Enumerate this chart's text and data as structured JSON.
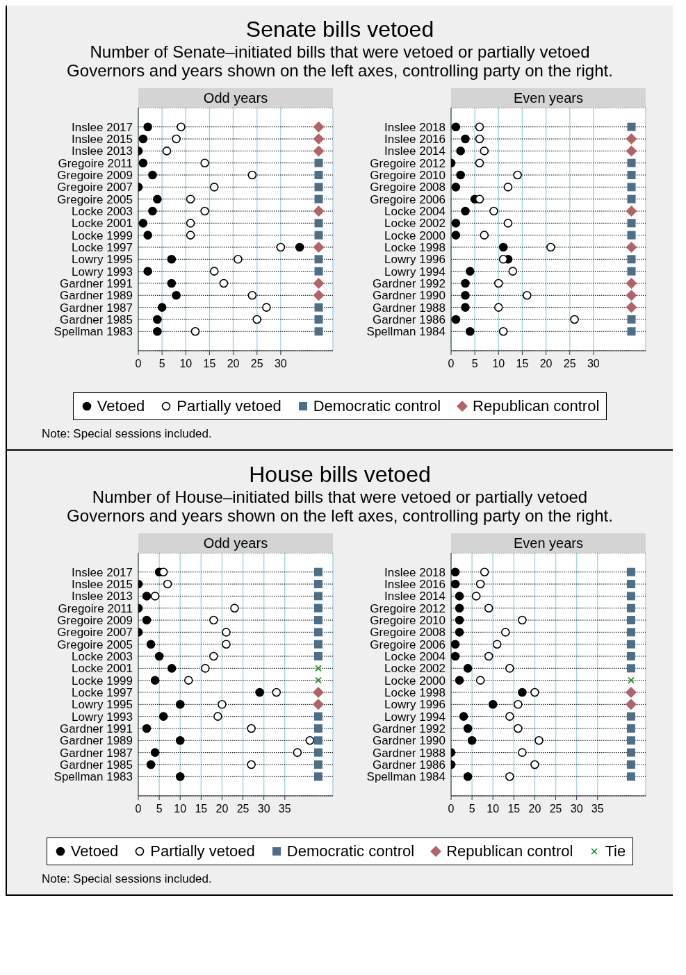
{
  "chart_data": [
    {
      "type": "scatter",
      "orientation": "horizontal",
      "title": "Odd years",
      "annotations": [
        "Senate bills vetoed",
        "Number of Senate–initiated bills that were vetoed or partially vetoed",
        "Governors and years shown on the left axes, controlling party on the right.",
        "Note: Special sessions included."
      ],
      "legend": "bottom",
      "grid": true,
      "categories": [
        "Inslee 2017",
        "Inslee 2015",
        "Inslee 2013",
        "Gregoire 2011",
        "Gregoire 2009",
        "Gregoire 2007",
        "Gregoire 2005",
        "Locke 2003",
        "Locke 2001",
        "Locke 1999",
        "Locke 1997",
        "Lowry 1995",
        "Lowry 1993",
        "Gardner 1991",
        "Gardner 1989",
        "Gardner 1987",
        "Gardner 1985",
        "Spellman 1983"
      ],
      "xlim": [
        0,
        41
      ],
      "xticks": [
        0,
        5,
        10,
        15,
        20,
        25,
        30
      ],
      "series": [
        {
          "name": "Vetoed",
          "color": "#000000",
          "marker": "circle",
          "values": [
            2,
            1,
            0,
            1,
            3,
            0,
            4,
            3,
            1,
            2,
            34,
            7,
            2,
            7,
            8,
            5,
            4,
            4
          ]
        },
        {
          "name": "Partially vetoed",
          "color": "#ffffff",
          "marker": "circle",
          "values": [
            9,
            8,
            6,
            14,
            24,
            16,
            11,
            14,
            11,
            11,
            30,
            21,
            16,
            18,
            24,
            27,
            25,
            12
          ]
        },
        {
          "name": "Democratic control",
          "color": "#4e6e88",
          "marker": "square",
          "values": [
            null,
            null,
            null,
            38,
            38,
            38,
            38,
            null,
            38,
            38,
            null,
            38,
            38,
            null,
            null,
            38,
            38,
            38
          ]
        },
        {
          "name": "Republican control",
          "color": "#b0646a",
          "marker": "diamond",
          "values": [
            38,
            38,
            38,
            null,
            null,
            null,
            null,
            38,
            null,
            null,
            38,
            null,
            null,
            38,
            38,
            null,
            null,
            null
          ]
        }
      ]
    },
    {
      "type": "scatter",
      "orientation": "horizontal",
      "title": "Even years",
      "grid": true,
      "categories": [
        "Inslee 2018",
        "Inslee 2016",
        "Inslee 2014",
        "Gregoire 2012",
        "Gregoire 2010",
        "Gregoire 2008",
        "Gregoire 2006",
        "Locke 2004",
        "Locke 2002",
        "Locke 2000",
        "Locke 1998",
        "Lowry 1996",
        "Lowry 1994",
        "Gardner 1992",
        "Gardner 1990",
        "Gardner 1988",
        "Gardner 1986",
        "Spellman 1984"
      ],
      "xlim": [
        0,
        41
      ],
      "xticks": [
        0,
        5,
        10,
        15,
        20,
        25,
        30
      ],
      "series": [
        {
          "color": "#000000",
          "marker": "circle",
          "values": [
            1,
            3,
            2,
            0,
            2,
            1,
            5,
            3,
            1,
            1,
            11,
            12,
            4,
            3,
            3,
            3,
            1,
            4
          ]
        },
        {
          "color": "#ffffff",
          "marker": "circle",
          "values": [
            6,
            6,
            7,
            6,
            14,
            12,
            6,
            9,
            12,
            7,
            21,
            11,
            13,
            10,
            16,
            10,
            26,
            11
          ]
        },
        {
          "color": "#4e6e88",
          "marker": "square",
          "values": [
            38,
            null,
            null,
            38,
            38,
            38,
            38,
            null,
            38,
            38,
            null,
            38,
            38,
            null,
            null,
            null,
            38,
            38
          ]
        },
        {
          "color": "#b0646a",
          "marker": "diamond",
          "values": [
            null,
            38,
            38,
            null,
            null,
            null,
            null,
            38,
            null,
            null,
            38,
            null,
            null,
            38,
            38,
            38,
            null,
            null
          ]
        }
      ]
    },
    {
      "type": "scatter",
      "orientation": "horizontal",
      "title": "Odd years",
      "annotations": [
        "House bills vetoed",
        "Number of House–initiated bills that were vetoed or partially vetoed",
        "Governors and years shown on the left axes, controlling party on the right.",
        "Note: Special sessions included."
      ],
      "legend": "bottom",
      "grid": true,
      "categories": [
        "Inslee 2017",
        "Inslee 2015",
        "Inslee 2013",
        "Gregoire 2011",
        "Gregoire 2009",
        "Gregoire 2007",
        "Gregoire 2005",
        "Locke 2003",
        "Locke 2001",
        "Locke 1999",
        "Locke 1997",
        "Lowry 1995",
        "Lowry 1993",
        "Gardner 1991",
        "Gardner 1989",
        "Gardner 1987",
        "Gardner 1985",
        "Spellman 1983"
      ],
      "xlim": [
        0,
        46.5
      ],
      "xticks": [
        0,
        5,
        10,
        15,
        20,
        25,
        30,
        35
      ],
      "series": [
        {
          "name": "Vetoed",
          "color": "#000000",
          "marker": "circle",
          "values": [
            5,
            0,
            2,
            0,
            2,
            0,
            3,
            5,
            8,
            4,
            29,
            10,
            6,
            2,
            10,
            4,
            3,
            10
          ]
        },
        {
          "name": "Partially vetoed",
          "color": "#ffffff",
          "marker": "circle",
          "values": [
            6,
            7,
            4,
            23,
            18,
            21,
            21,
            18,
            16,
            12,
            33,
            20,
            19,
            27,
            41,
            38,
            27,
            null
          ]
        },
        {
          "name": "Democratic control",
          "color": "#4e6e88",
          "marker": "square",
          "values": [
            43,
            43,
            43,
            43,
            43,
            43,
            43,
            43,
            null,
            null,
            null,
            null,
            43,
            43,
            43,
            43,
            43,
            43
          ]
        },
        {
          "name": "Republican control",
          "color": "#b0646a",
          "marker": "diamond",
          "values": [
            null,
            null,
            null,
            null,
            null,
            null,
            null,
            null,
            null,
            null,
            43,
            43,
            null,
            null,
            null,
            null,
            null,
            null
          ]
        },
        {
          "name": "Tie",
          "color": "#1a8a1a",
          "marker": "cross",
          "values": [
            null,
            null,
            null,
            null,
            null,
            null,
            null,
            null,
            43,
            43,
            null,
            null,
            null,
            null,
            null,
            null,
            null,
            null
          ]
        }
      ]
    },
    {
      "type": "scatter",
      "orientation": "horizontal",
      "title": "Even years",
      "grid": true,
      "categories": [
        "Inslee 2018",
        "Inslee 2016",
        "Inslee 2014",
        "Gregoire 2012",
        "Gregoire 2010",
        "Gregoire 2008",
        "Gregoire 2006",
        "Locke 2004",
        "Locke 2002",
        "Locke 2000",
        "Locke 1998",
        "Lowry 1996",
        "Lowry 1994",
        "Gardner 1992",
        "Gardner 1990",
        "Gardner 1988",
        "Gardner 1986",
        "Spellman 1984"
      ],
      "xlim": [
        0,
        46.5
      ],
      "xticks": [
        0,
        5,
        10,
        15,
        20,
        25,
        30,
        35
      ],
      "series": [
        {
          "color": "#000000",
          "marker": "circle",
          "values": [
            1,
            1,
            2,
            2,
            2,
            2,
            1,
            1,
            4,
            2,
            17,
            10,
            3,
            4,
            5,
            0,
            0,
            4
          ]
        },
        {
          "color": "#ffffff",
          "marker": "circle",
          "values": [
            8,
            7,
            6,
            9,
            17,
            13,
            11,
            9,
            14,
            7,
            20,
            16,
            14,
            16,
            21,
            17,
            20,
            14
          ]
        },
        {
          "color": "#4e6e88",
          "marker": "square",
          "values": [
            43,
            43,
            43,
            43,
            43,
            43,
            43,
            43,
            43,
            null,
            null,
            null,
            43,
            43,
            43,
            43,
            43,
            43
          ]
        },
        {
          "color": "#b0646a",
          "marker": "diamond",
          "values": [
            null,
            null,
            null,
            null,
            null,
            null,
            null,
            null,
            null,
            null,
            43,
            43,
            null,
            null,
            null,
            null,
            null,
            null
          ]
        },
        {
          "color": "#1a8a1a",
          "marker": "cross",
          "values": [
            null,
            null,
            null,
            null,
            null,
            null,
            null,
            null,
            null,
            43,
            null,
            null,
            null,
            null,
            null,
            null,
            null,
            null
          ]
        }
      ]
    }
  ]
}
